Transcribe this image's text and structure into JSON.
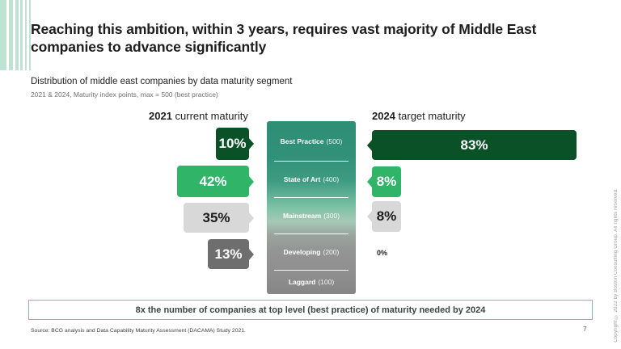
{
  "slide": {
    "title": "Reaching this ambition, within 3 years, requires vast majority of Middle East companies to advance significantly",
    "chart_title": "Distribution of middle east companies by data maturity segment",
    "chart_subtitle": "2021 & 2024, Maturity index points, max = 500 (best practice)",
    "left_header": {
      "year": "2021",
      "label": " current maturity"
    },
    "right_header": {
      "year": "2024",
      "label": " target maturity"
    },
    "banner": "8x the number of companies at top level (best practice) of maturity needed by 2024",
    "source": "Source: BCG analysis and Data Capability Maturity Assessment (DACAMA) Study 2021.",
    "page_number": "7",
    "copyright": "Copyright © 2022 by Boston Consulting Group. All rights reserved."
  },
  "segments": [
    {
      "name": "Best Practice",
      "points": "(500)"
    },
    {
      "name": "State of Art",
      "points": "(400)"
    },
    {
      "name": "Mainstream",
      "points": "(300)"
    },
    {
      "name": "Developing",
      "points": "(200)"
    },
    {
      "name": "Laggard",
      "points": "(100)"
    }
  ],
  "bars_2021": [
    {
      "segment": "Best Practice",
      "value": "10%"
    },
    {
      "segment": "State of Art",
      "value": "42%"
    },
    {
      "segment": "Mainstream",
      "value": "35%"
    },
    {
      "segment": "Developing",
      "value": "13%"
    }
  ],
  "bars_2024": [
    {
      "segment": "Best Practice",
      "value": "83%"
    },
    {
      "segment": "State of Art",
      "value": "8%"
    },
    {
      "segment": "Mainstream",
      "value": "8%"
    },
    {
      "segment": "Developing",
      "value": "0%"
    }
  ],
  "colors": {
    "dark_green": "#0b5128",
    "green": "#2fb468",
    "light_gray": "#d8d8d8",
    "dark_gray": "#6e6e6e",
    "scale_gradient_top": "#2e8f76",
    "scale_gradient_bottom": "#868686",
    "accent_stripes": "#bfe2d2",
    "banner_border": "#86b5a9"
  },
  "chart_data": {
    "type": "bar",
    "title": "Distribution of middle east companies by data maturity segment",
    "subtitle": "2021 & 2024, Maturity index points, max = 500 (best practice)",
    "categories": [
      "Best Practice (500)",
      "State of Art (400)",
      "Mainstream (300)",
      "Developing (200)",
      "Laggard (100)"
    ],
    "series": [
      {
        "name": "2021 current maturity",
        "values": [
          10,
          42,
          35,
          13,
          null
        ]
      },
      {
        "name": "2024 target maturity",
        "values": [
          83,
          8,
          8,
          0,
          null
        ]
      }
    ],
    "unit": "%",
    "orientation": "horizontal",
    "annotation": "8x the number of companies at top level (best practice) of maturity needed by 2024"
  }
}
